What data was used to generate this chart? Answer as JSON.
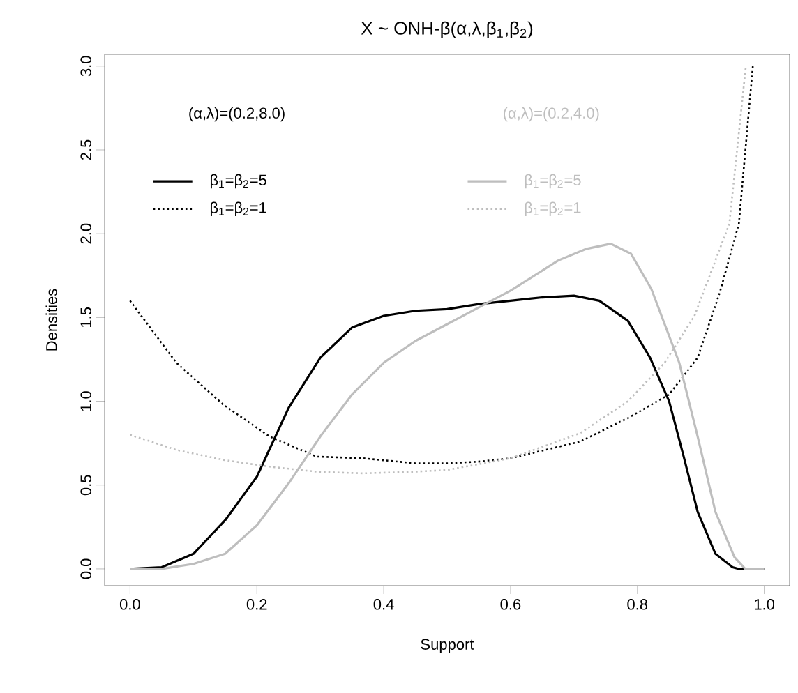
{
  "chart_data": {
    "type": "line",
    "title": "X ~ ONH-β(α,λ,β$_{1}$,β$_{2}$)",
    "xlabel": "Support",
    "ylabel": "Densities",
    "annotations": [
      "(α,λ)=(0.2,8.0)",
      "(α,λ)=(0.2,4.0)"
    ],
    "xlim": [
      -0.04,
      1.04
    ],
    "ylim": [
      -0.1,
      3.07
    ],
    "xticks": [
      {
        "value": 0,
        "label": "0.0"
      },
      {
        "value": 0.2,
        "label": "0.2"
      },
      {
        "value": 0.4,
        "label": "0.4"
      },
      {
        "value": 0.6,
        "label": "0.6"
      },
      {
        "value": 0.8,
        "label": "0.8"
      },
      {
        "value": 1,
        "label": "1.0"
      }
    ],
    "yticks": [
      {
        "value": 0,
        "label": "0.0"
      },
      {
        "value": 0.5,
        "label": "0.5"
      },
      {
        "value": 1,
        "label": "1.0"
      },
      {
        "value": 1.5,
        "label": "1.5"
      },
      {
        "value": 2,
        "label": "2.0"
      },
      {
        "value": 2.5,
        "label": "2.5"
      },
      {
        "value": 3,
        "label": "3.0"
      }
    ],
    "grid": false,
    "legend": "top left",
    "marker": "none",
    "series": [
      {
        "name": "β$_{1}$=β$_{2}$=5",
        "color": "#000000",
        "line_style": "solid",
        "x": [
          0,
          0.05,
          0.1,
          0.15,
          0.2,
          0.25,
          0.3,
          0.35,
          0.4,
          0.45,
          0.5,
          0.55,
          0.6,
          0.65,
          0.7,
          0.74,
          0.785,
          0.82,
          0.85,
          0.873,
          0.895,
          0.923,
          0.95,
          0.96,
          1.0
        ],
        "values": [
          0,
          0.01,
          0.09,
          0.29,
          0.55,
          0.96,
          1.26,
          1.44,
          1.51,
          1.54,
          1.55,
          1.58,
          1.6,
          1.62,
          1.63,
          1.6,
          1.48,
          1.26,
          1.0,
          0.67,
          0.34,
          0.09,
          0.01,
          0,
          0
        ]
      },
      {
        "name": "β$_{1}$=β$_{2}$=1",
        "color": "#000000",
        "line_style": "dotted",
        "x": [
          0,
          0.073,
          0.147,
          0.22,
          0.294,
          0.367,
          0.45,
          0.5,
          0.55,
          0.6,
          0.71,
          0.785,
          0.85,
          0.895,
          0.93,
          0.96,
          0.982
        ],
        "values": [
          1.6,
          1.23,
          0.98,
          0.79,
          0.67,
          0.66,
          0.63,
          0.63,
          0.64,
          0.66,
          0.76,
          0.9,
          1.04,
          1.26,
          1.65,
          2.06,
          3.0
        ]
      },
      {
        "name": "β$_{1}$=β$_{2}$=5",
        "color": "#bebebe",
        "line_style": "solid",
        "x": [
          0,
          0.05,
          0.1,
          0.15,
          0.2,
          0.25,
          0.3,
          0.35,
          0.4,
          0.45,
          0.5,
          0.55,
          0.6,
          0.675,
          0.72,
          0.758,
          0.79,
          0.822,
          0.866,
          0.895,
          0.923,
          0.953,
          0.97,
          1.0
        ],
        "values": [
          0,
          0,
          0.03,
          0.09,
          0.26,
          0.51,
          0.79,
          1.04,
          1.23,
          1.36,
          1.46,
          1.56,
          1.66,
          1.84,
          1.91,
          1.94,
          1.88,
          1.67,
          1.23,
          0.79,
          0.34,
          0.07,
          0,
          0
        ]
      },
      {
        "name": "β$_{1}$=β$_{2}$=1",
        "color": "#bebebe",
        "line_style": "dotted",
        "x": [
          0,
          0.073,
          0.147,
          0.22,
          0.294,
          0.367,
          0.45,
          0.5,
          0.6,
          0.71,
          0.785,
          0.843,
          0.89,
          0.923,
          0.945,
          0.971
        ],
        "values": [
          0.8,
          0.71,
          0.65,
          0.61,
          0.58,
          0.57,
          0.58,
          0.59,
          0.66,
          0.81,
          1.0,
          1.23,
          1.51,
          1.84,
          2.06,
          3.0
        ]
      }
    ]
  }
}
